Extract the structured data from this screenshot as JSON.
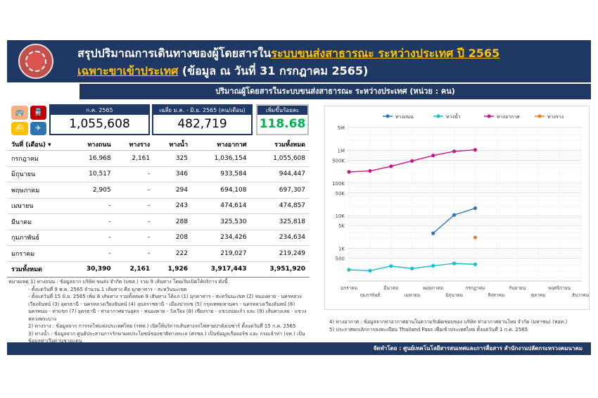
{
  "header": {
    "title_part1": "สรุปปริมาณการเดินทางของผู้โดยสารใน",
    "title_part2": "ระบบขนส่งสาธารณะ ระหว่างประเทศ ปี 2565",
    "subtitle_part1": "เฉพาะขาเข้าประเทศ",
    "subtitle_part2": " (ข้อมูล ณ วันที่ 31 กรกฎาคม 2565)"
  },
  "banner": "ปริมาณผู้โดยสารในระบบขนส่งสาธารณะ ระหว่างประเทศ (หน่วย : คน)",
  "kpis": [
    {
      "label": "ก.ค. 2565",
      "value": "1,055,608"
    },
    {
      "label": "เฉลี่ย ม.ค. - มิ.ย. 2565 (คน/เดือน)",
      "value": "482,719"
    },
    {
      "label": "เพิ่มขึ้นร้อยละ",
      "value": "118.68"
    }
  ],
  "table": {
    "headers": [
      "วันที่ (เดือน) ▾",
      "ทางถนน",
      "ทางราง",
      "ทางน้ำ",
      "ทางอากาศ",
      "รวมทั้งหมด"
    ],
    "rows": [
      [
        "กรกฎาคม",
        "16,968",
        "2,161",
        "325",
        "1,036,154",
        "1,055,608"
      ],
      [
        "มิถุนายน",
        "10,517",
        "-",
        "346",
        "933,584",
        "944,447"
      ],
      [
        "พฤษภาคม",
        "2,905",
        "-",
        "294",
        "694,108",
        "697,307"
      ],
      [
        "เมษายน",
        "-",
        "-",
        "243",
        "474,614",
        "474,857"
      ],
      [
        "มีนาคม",
        "-",
        "-",
        "288",
        "325,530",
        "325,818"
      ],
      [
        "กุมภาพันธ์",
        "-",
        "-",
        "208",
        "234,426",
        "234,634"
      ],
      [
        "มกราคม",
        "-",
        "-",
        "222",
        "219,027",
        "219,249"
      ]
    ],
    "total": [
      "รวมทั้งหมด",
      "30,390",
      "2,161",
      "1,926",
      "3,917,443",
      "3,951,920"
    ]
  },
  "notes_left": [
    "หมายเหตุ 1) ทางถนน : ข้อมูลจาก บริษัท ขนส่ง จำกัด (บขส.) รวม 9 เส้นทาง โดยเริ่มเปิดให้บริการ ดังนี้",
    "- ตั้งแต่วันที่ 9 พ.ค. 2565 จำนวน 1 เส้นทาง คือ มุกดาหาร - สะหวันนะเขต",
    "- ตั้งแต่วันที่ 15 มิ.ย. 2565 เพิ่ม 8 เส้นทาง รวมทั้งหมด 9 เส้นทาง ได้แก่ (1) มุกดาหาร - สะหวันนะเขต (2) หนองคาย - นครหลวงเวียงจันทน์ (3) อุดรธานี - นครหลวงเวียงจันทน์ (4) อุบลราชธานี - เมืองปากเซ (5) กรุงเทพมหานคร - นครหลวงเวียงจันทน์ (6) นครพนม - ท่าแขก (7) อุดรธานี - ท่าอากาศยานอุดร - หนองคาย - วังเวียง (8) เชียงราย - แขวงบ่อแก้ว และ (9) เส้นทางเลย - แขวงหลวงพระบาง",
    "2) ทางราง : ข้อมูลจาก การรถไฟแห่งประเทศไทย (รฟท.) เปิดให้บริการเส้นทางรถไฟสายปาดังเบซาร์ ตั้งแต่วันที่ 15 ก.ค. 2565",
    "3) ทางน้ำ : ข้อมูลจาก ศูนย์ประสานการรักษาผลประโยชน์ของชาติทางทะเล (ศรชล.) เป็นข้อมูลเรือยอร์ช และ กรมเจ้าท่า (จท.) เป็นข้อมูลท่าเรือด่านชายแดน"
  ],
  "notes_right": [
    "4) ทางอากาศ : ข้อมูลจากท่าอากาศยานในความรับผิดชอบของ บริษัท ท่าอากาศยานไทย จำกัด (มหาชน) (ทอท.)",
    "5) ประกาศยกเลิกการลงทะเบียน Thailand Pass เพื่อเข้าประเทศไทย ตั้งแต่วันที่ 1 ก.ค. 2565"
  ],
  "footer": "จัดทำโดย : ศูนย์เทคโนโลยีสารสนเทศและการสื่อสาร สำนักงานปลัดกระทรวงคมนาคม",
  "colors": {
    "navy": "#1f3864",
    "road": "#2e75b6",
    "water": "#17becf",
    "air": "#c71585",
    "rail": "#e67e22"
  },
  "chart_data": {
    "type": "line",
    "scale": "log",
    "x": [
      "มกราคม",
      "กุมภาพันธ์",
      "มีนาคม",
      "เมษายน",
      "พฤษภาคม",
      "มิถุนายน",
      "กรกฎาคม",
      "สิงหาคม",
      "กันยายน",
      "ตุลาคม",
      "พฤศจิกายน",
      "ธันวาคม"
    ],
    "series": [
      {
        "name": "ทางถนน",
        "color": "#2e75b6",
        "values": [
          null,
          null,
          null,
          null,
          2905,
          10517,
          16968,
          null,
          null,
          null,
          null,
          null
        ]
      },
      {
        "name": "ทางน้ำ",
        "color": "#17becf",
        "values": [
          222,
          208,
          288,
          243,
          294,
          346,
          325,
          null,
          null,
          null,
          null,
          null
        ]
      },
      {
        "name": "ทางอากาศ",
        "color": "#c71585",
        "values": [
          219027,
          234426,
          325530,
          474614,
          694108,
          933584,
          1036154,
          null,
          null,
          null,
          null,
          null
        ]
      },
      {
        "name": "ทางราง",
        "color": "#e67e22",
        "values": [
          null,
          null,
          null,
          null,
          null,
          null,
          2161,
          null,
          null,
          null,
          null,
          null
        ]
      }
    ],
    "yticks": [
      {
        "v": 5000000,
        "label": "5M"
      },
      {
        "v": 1000000,
        "label": "1M"
      },
      {
        "v": 500000,
        "label": "500K"
      },
      {
        "v": 100000,
        "label": "100K"
      },
      {
        "v": 50000,
        "label": "50K"
      },
      {
        "v": 10000,
        "label": "10K"
      },
      {
        "v": 5000,
        "label": "5K"
      },
      {
        "v": 1000,
        "label": "1K"
      },
      {
        "v": 500,
        "label": "500"
      }
    ],
    "ylim": [
      100,
      5000000
    ],
    "legend": "top-left"
  }
}
